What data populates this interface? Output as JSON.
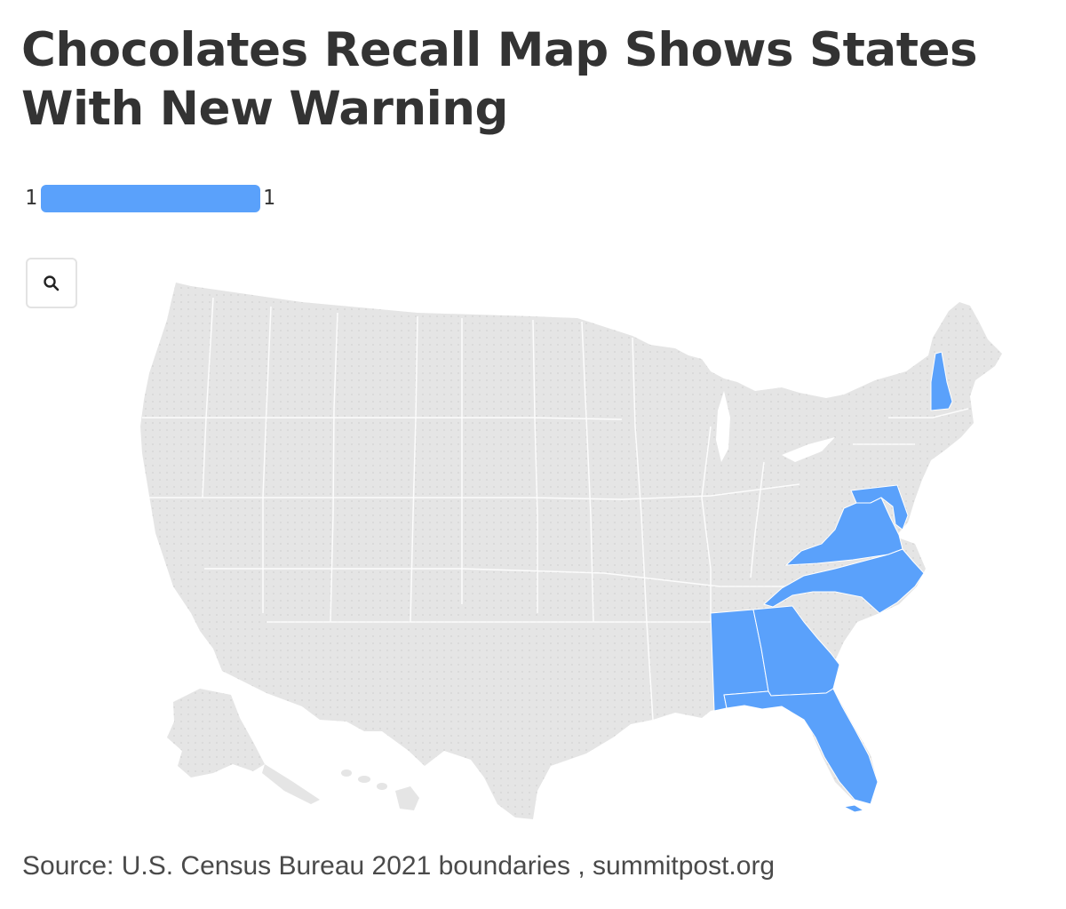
{
  "title": "Chocolates Recall Map Shows States With New Warning",
  "legend": {
    "min_label": "1",
    "max_label": "1",
    "color": "#5aa1fb"
  },
  "zoom_button": {
    "icon": "search-icon"
  },
  "map": {
    "base_color": "#e5e5e5",
    "highlight_color": "#5aa1fb",
    "highlighted_states": [
      {
        "state": "New Hampshire",
        "value": 1
      },
      {
        "state": "Maryland",
        "value": 1
      },
      {
        "state": "Virginia",
        "value": 1
      },
      {
        "state": "North Carolina",
        "value": 1
      },
      {
        "state": "Georgia",
        "value": 1
      },
      {
        "state": "Alabama",
        "value": 1
      },
      {
        "state": "Florida",
        "value": 1
      }
    ]
  },
  "source": "Source: U.S. Census Bureau 2021 boundaries , summitpost.org"
}
